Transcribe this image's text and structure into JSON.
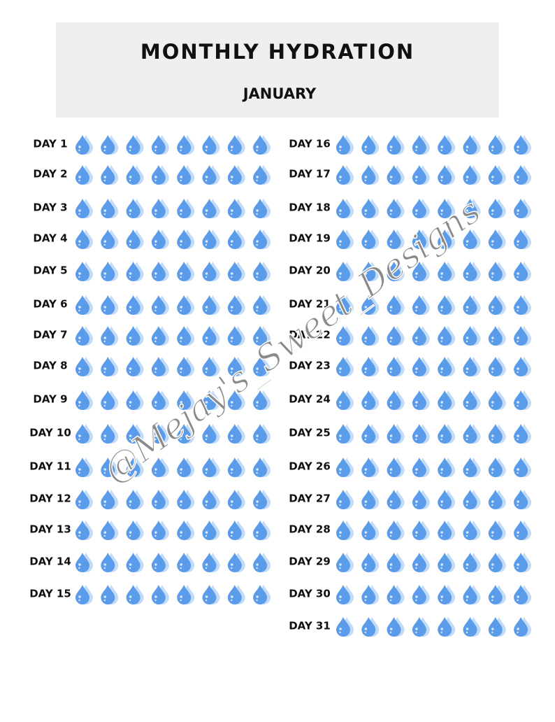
{
  "header": {
    "title": "MONTHLY HYDRATION",
    "subtitle": "JANUARY"
  },
  "days": [
    "DAY 1",
    "DAY 2",
    "DAY 3",
    "DAY 4",
    "DAY 5",
    "DAY 6",
    "DAY 7",
    "DAY 8",
    "DAY 9",
    "DAY 10",
    "DAY 11",
    "DAY 12",
    "DAY 13",
    "DAY 14",
    "DAY 15",
    "DAY 16",
    "DAY 17",
    "DAY 18",
    "DAY 19",
    "DAY 20",
    "DAY 21",
    "DAY 22",
    "DAY 23",
    "DAY 24",
    "DAY 25",
    "DAY 26",
    "DAY 27",
    "DAY 28",
    "DAY 29",
    "DAY 30",
    "DAY 31"
  ],
  "watermark": "@Mejay's_Sweet_Designs"
}
